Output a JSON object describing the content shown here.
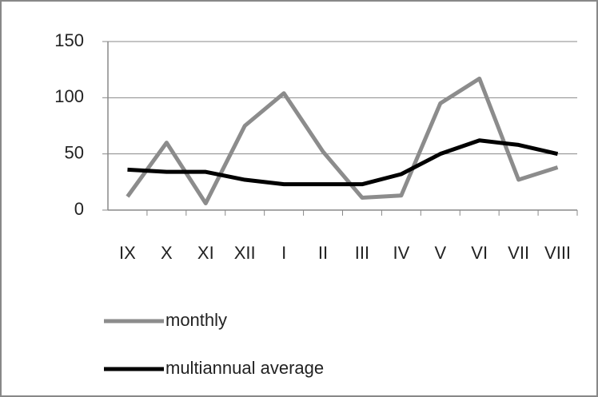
{
  "chart_data": {
    "type": "line",
    "categories": [
      "IX",
      "X",
      "XI",
      "XII",
      "I",
      "II",
      "III",
      "IV",
      "V",
      "VI",
      "VII",
      "VIII"
    ],
    "series": [
      {
        "name": "monthly",
        "color": "#8c8c8c",
        "values": [
          12,
          60,
          6,
          75,
          104,
          52,
          11,
          13,
          95,
          117,
          27,
          38
        ]
      },
      {
        "name": "multiannual average",
        "color": "#000000",
        "values": [
          36,
          34,
          34,
          27,
          23,
          23,
          23,
          32,
          50,
          62,
          58,
          50
        ]
      }
    ],
    "ylim": [
      0,
      150
    ],
    "yticks": [
      0,
      50,
      100,
      150
    ],
    "grid": true,
    "legend": "bottom"
  }
}
